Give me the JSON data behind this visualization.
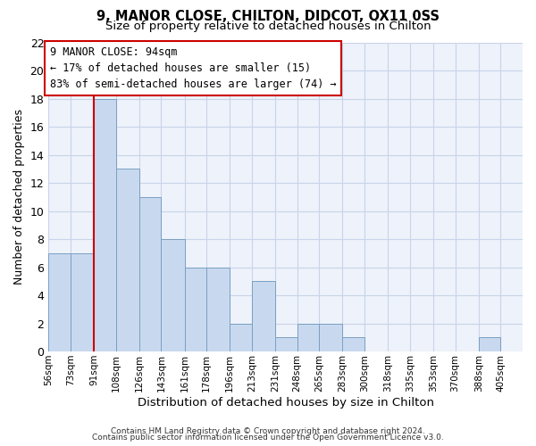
{
  "title": "9, MANOR CLOSE, CHILTON, DIDCOT, OX11 0SS",
  "subtitle": "Size of property relative to detached houses in Chilton",
  "xlabel": "Distribution of detached houses by size in Chilton",
  "ylabel": "Number of detached properties",
  "bin_labels": [
    "56sqm",
    "73sqm",
    "91sqm",
    "108sqm",
    "126sqm",
    "143sqm",
    "161sqm",
    "178sqm",
    "196sqm",
    "213sqm",
    "231sqm",
    "248sqm",
    "265sqm",
    "283sqm",
    "300sqm",
    "318sqm",
    "335sqm",
    "353sqm",
    "370sqm",
    "388sqm",
    "405sqm"
  ],
  "bin_edges": [
    56,
    73,
    91,
    108,
    126,
    143,
    161,
    178,
    196,
    213,
    231,
    248,
    265,
    283,
    300,
    318,
    335,
    353,
    370,
    388,
    405
  ],
  "bar_heights": [
    7,
    7,
    18,
    13,
    11,
    8,
    6,
    6,
    2,
    5,
    1,
    2,
    2,
    1,
    0,
    0,
    0,
    0,
    0,
    1,
    0
  ],
  "bar_color": "#c8d9ef",
  "bar_edge_color": "#7a9fc2",
  "grid_color": "#c8d4e8",
  "background_color": "#eef2fa",
  "vline_x": 91,
  "vline_color": "#cc0000",
  "annotation_line1": "9 MANOR CLOSE: 94sqm",
  "annotation_line2": "← 17% of detached houses are smaller (15)",
  "annotation_line3": "83% of semi-detached houses are larger (74) →",
  "annotation_box_edge_color": "#cc0000",
  "ylim": [
    0,
    22
  ],
  "yticks": [
    0,
    2,
    4,
    6,
    8,
    10,
    12,
    14,
    16,
    18,
    20,
    22
  ],
  "footer1": "Contains HM Land Registry data © Crown copyright and database right 2024.",
  "footer2": "Contains public sector information licensed under the Open Government Licence v3.0."
}
